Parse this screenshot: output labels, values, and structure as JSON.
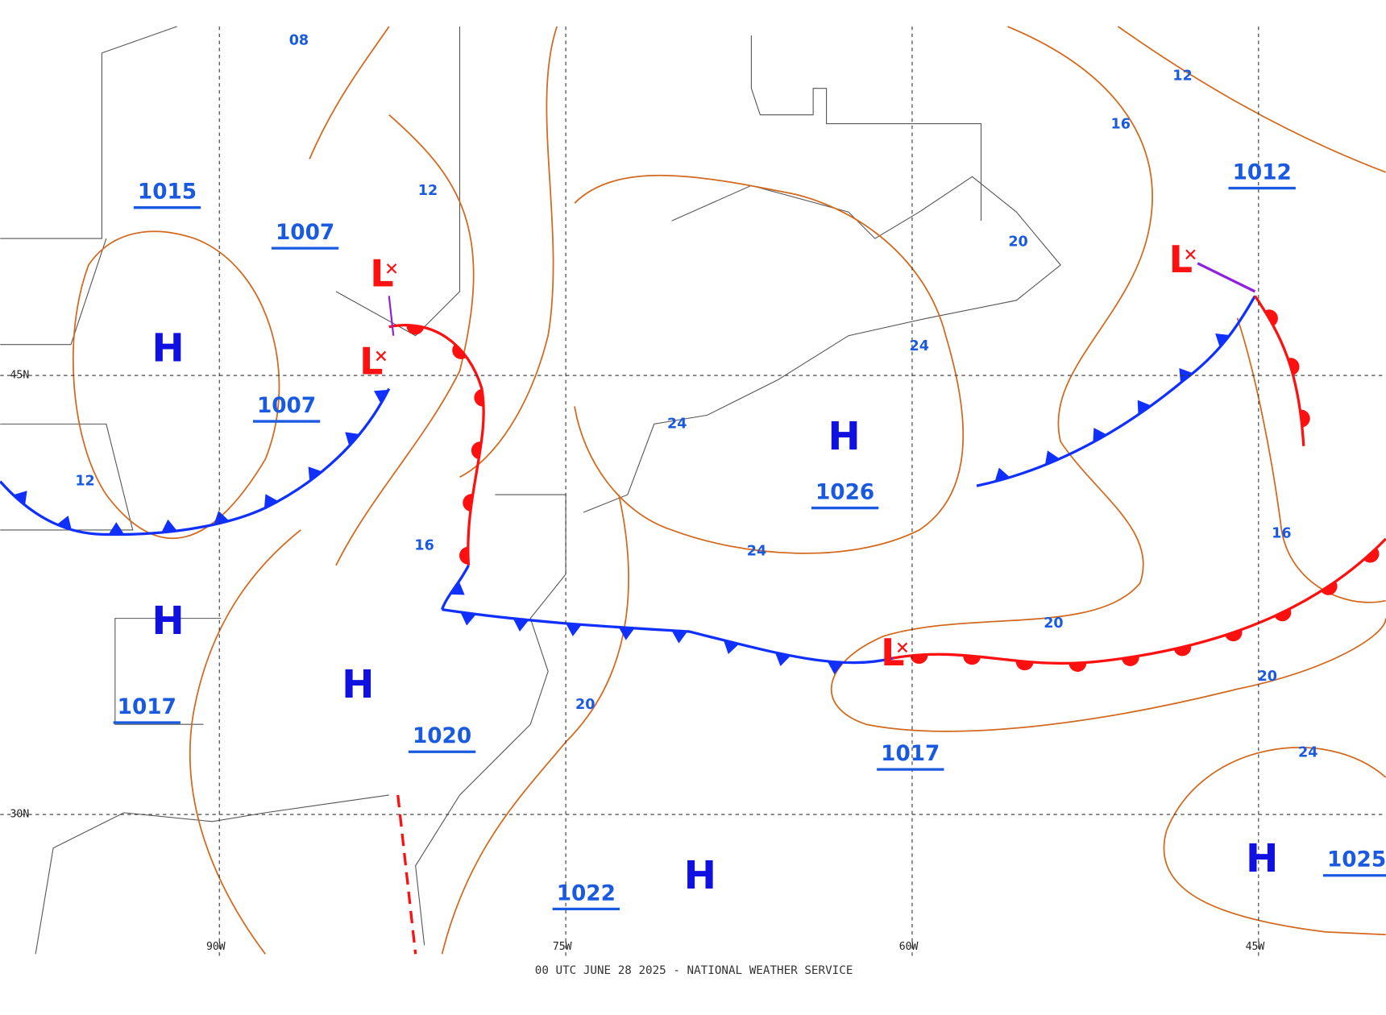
{
  "map": {
    "footer": "00 UTC JUNE 28 2025 - NATIONAL WEATHER SERVICE",
    "grid_labels": [
      "45N",
      "30N",
      "90W",
      "75W",
      "60W",
      "45W"
    ],
    "isobar_labels": [
      "08",
      "12",
      "16",
      "12",
      "20",
      "24",
      "24",
      "12",
      "16",
      "24",
      "16",
      "20",
      "20",
      "20",
      "24"
    ],
    "pressure_labels": [
      "1015",
      "1007",
      "1007",
      "1017",
      "1020",
      "1022",
      "1026",
      "1017",
      "1012",
      "1025"
    ],
    "highs": [
      "H",
      "H",
      "H",
      "H",
      "H",
      "H"
    ],
    "lows": [
      "L",
      "L",
      "L",
      "L"
    ]
  }
}
